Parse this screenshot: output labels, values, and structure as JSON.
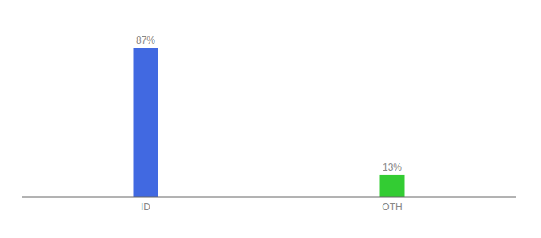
{
  "chart_data": {
    "type": "bar",
    "categories": [
      "ID",
      "OTH"
    ],
    "values": [
      87,
      13
    ],
    "value_labels": [
      "87%",
      "13%"
    ],
    "data_labels": true,
    "colors": [
      "#4169e1",
      "#33cc33"
    ],
    "ylim": [
      0,
      100
    ],
    "grid": false,
    "tick_labels": "x"
  }
}
